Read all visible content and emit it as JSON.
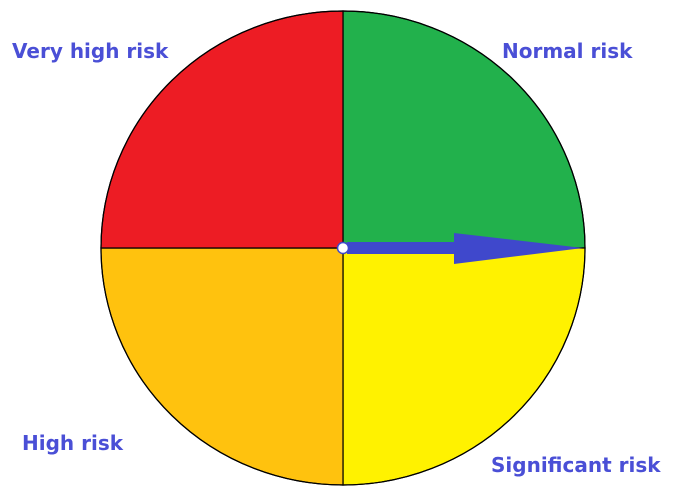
{
  "quadrants": [
    {
      "key": "normal",
      "label": "Normal risk",
      "color": "#22b14c"
    },
    {
      "key": "significant",
      "label": "Significant risk",
      "color": "#fff200"
    },
    {
      "key": "high",
      "label": "High risk",
      "color": "#ffc20e"
    },
    {
      "key": "very_high",
      "label": "Very high risk",
      "color": "#ed1c24"
    }
  ],
  "label_color": "#4a4fd6",
  "pointer": {
    "color": "#3f48cc",
    "direction": "right"
  }
}
